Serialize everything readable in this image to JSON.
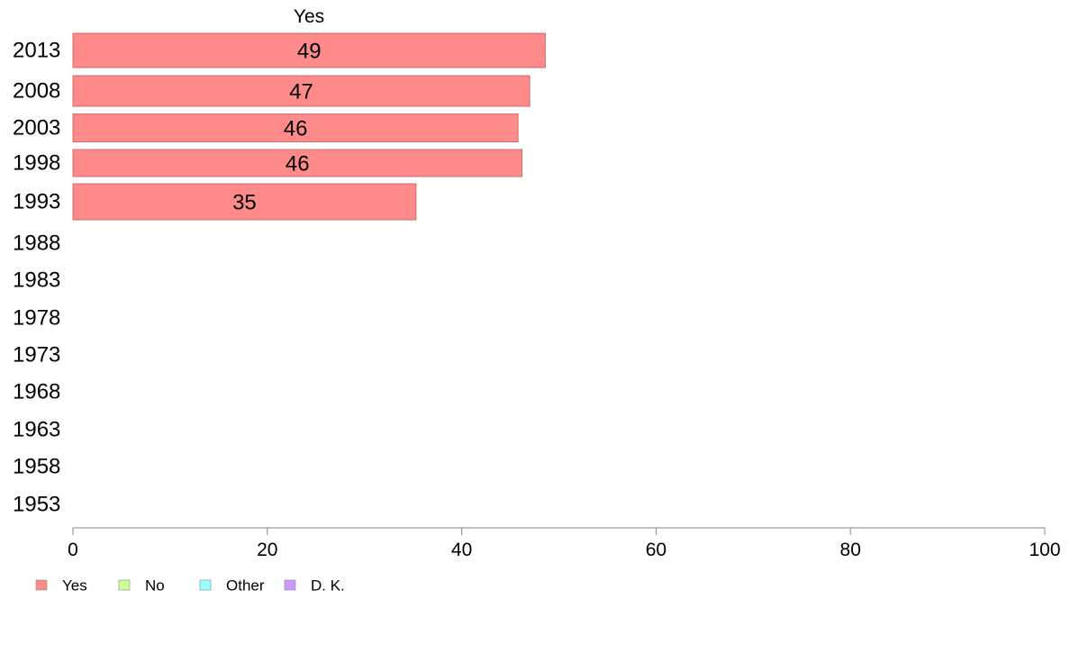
{
  "chart_data": {
    "type": "bar",
    "orientation": "horizontal",
    "stacked": true,
    "series_title": "Yes",
    "categories": [
      "2013",
      "2008",
      "2003",
      "1998",
      "1993",
      "1988",
      "1983",
      "1978",
      "1973",
      "1968",
      "1963",
      "1958",
      "1953"
    ],
    "series": [
      {
        "name": "Yes",
        "color": "#ff8a8a",
        "values": [
          48.6,
          47.0,
          45.8,
          46.2,
          35.3,
          null,
          null,
          null,
          null,
          null,
          null,
          null,
          null
        ],
        "labels": [
          "49",
          "47",
          "46",
          "46",
          "35",
          "",
          "",
          "",
          "",
          "",
          "",
          "",
          ""
        ]
      },
      {
        "name": "No",
        "color": "#ccff99",
        "values": [
          null,
          null,
          null,
          null,
          null,
          null,
          null,
          null,
          null,
          null,
          null,
          null,
          null
        ]
      },
      {
        "name": "Other",
        "color": "#99ffff",
        "values": [
          null,
          null,
          null,
          null,
          null,
          null,
          null,
          null,
          null,
          null,
          null,
          null,
          null
        ]
      },
      {
        "name": "D. K.",
        "color": "#cc99ff",
        "values": [
          null,
          null,
          null,
          null,
          null,
          null,
          null,
          null,
          null,
          null,
          null,
          null,
          null
        ]
      }
    ],
    "xlim": [
      0,
      100
    ],
    "xticks": [
      "0",
      "20",
      "40",
      "60",
      "80",
      "100"
    ],
    "grid": false,
    "legend_position": "bottom-left"
  }
}
